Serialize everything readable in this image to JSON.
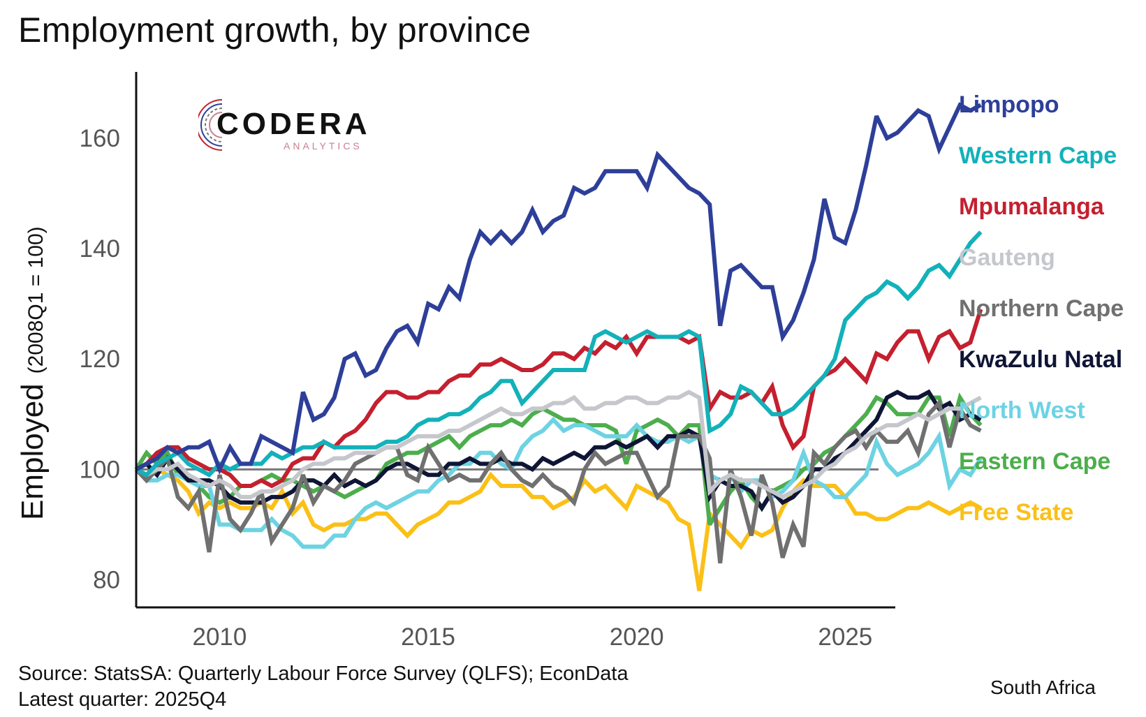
{
  "chart_data": {
    "type": "line",
    "title": "Employment growth, by province",
    "ylabel": "Employed",
    "ylabel_sub": "(2008Q1 = 100)",
    "xlabel": "",
    "xlim": [
      2008.0,
      2026.2
    ],
    "ylim": [
      75,
      172
    ],
    "y_ticks": [
      {
        "value": 80,
        "label": "80"
      },
      {
        "value": 100,
        "label": "100"
      },
      {
        "value": 120,
        "label": "120"
      },
      {
        "value": 140,
        "label": "140"
      },
      {
        "value": 160,
        "label": "160"
      }
    ],
    "x_ticks": [
      {
        "value": 2010,
        "label": "2010"
      },
      {
        "value": 2015,
        "label": "2015"
      },
      {
        "value": 2020,
        "label": "2020"
      },
      {
        "value": 2025,
        "label": "2025"
      }
    ],
    "reference_line": 100,
    "x_start": 2008.0,
    "x_step": 0.25,
    "series": [
      {
        "name": "Limpopo",
        "color": "#2e3f99",
        "values": [
          100,
          101,
          102,
          104,
          103,
          104,
          104,
          105,
          100,
          104,
          101,
          101,
          106,
          105,
          104,
          103,
          114,
          109,
          110,
          113,
          120,
          121,
          117,
          118,
          122,
          125,
          126,
          123,
          130,
          129,
          133,
          131,
          138,
          143,
          141,
          143,
          141,
          143,
          147,
          143,
          145,
          146,
          151,
          150,
          151,
          154,
          154,
          154,
          154,
          151,
          157,
          155,
          153,
          151,
          150,
          148,
          126,
          136,
          137,
          135,
          133,
          133,
          124,
          127,
          132,
          138,
          149,
          142,
          141,
          147,
          155,
          164,
          160,
          161,
          163,
          165,
          164,
          158,
          162,
          166,
          165,
          166
        ]
      },
      {
        "name": "Western Cape",
        "color": "#13b1b9",
        "values": [
          100,
          99,
          101,
          102,
          103,
          101,
          100,
          99,
          101,
          100,
          101,
          101,
          101,
          103,
          102,
          103,
          104,
          104,
          105,
          104,
          104,
          104,
          104,
          104,
          105,
          105,
          106,
          108,
          109,
          109,
          110,
          110,
          111,
          113,
          114,
          116,
          116,
          112,
          114,
          116,
          118,
          118,
          118,
          118,
          124,
          125,
          124,
          123,
          124,
          125,
          124,
          124,
          124,
          125,
          124,
          107,
          108,
          110,
          115,
          114,
          112,
          110,
          110,
          111,
          113,
          115,
          117,
          120,
          127,
          129,
          131,
          132,
          134,
          133,
          131,
          133,
          136,
          137,
          135,
          138,
          141,
          143
        ]
      },
      {
        "name": "Mpumalanga",
        "color": "#c4202f",
        "values": [
          100,
          101,
          103,
          104,
          104,
          102,
          101,
          100,
          100,
          99,
          97,
          97,
          98,
          97,
          98,
          101,
          102,
          102,
          105,
          104,
          106,
          107,
          109,
          112,
          114,
          114,
          113,
          113,
          114,
          114,
          116,
          117,
          117,
          119,
          119,
          120,
          119,
          118,
          118,
          119,
          121,
          121,
          120,
          122,
          121,
          123,
          122,
          124,
          121,
          124,
          124,
          124,
          124,
          123,
          124,
          111,
          114,
          113,
          113,
          114,
          112,
          115,
          108,
          104,
          106,
          115,
          117,
          118,
          120,
          118,
          116,
          121,
          120,
          123,
          125,
          125,
          120,
          124,
          125,
          122,
          123,
          129
        ]
      },
      {
        "name": "Gauteng",
        "color": "#c5c7cc",
        "values": [
          100,
          99,
          100,
          100,
          101,
          99,
          98,
          97,
          98,
          97,
          95,
          95,
          96,
          96,
          97,
          98,
          100,
          101,
          101,
          102,
          102,
          103,
          103,
          103,
          104,
          104,
          105,
          106,
          106,
          106,
          107,
          107,
          108,
          109,
          110,
          111,
          110,
          110,
          111,
          111,
          112,
          112,
          113,
          111,
          111,
          112,
          112,
          113,
          113,
          112,
          112,
          113,
          113,
          114,
          113,
          96,
          98,
          99,
          98,
          98,
          97,
          96,
          95,
          96,
          97,
          98,
          100,
          101,
          103,
          104,
          106,
          107,
          108,
          108,
          109,
          110,
          109,
          110,
          111,
          111,
          112,
          113
        ]
      },
      {
        "name": "Northern Cape",
        "color": "#707070",
        "values": [
          100,
          98,
          100,
          102,
          95,
          93,
          96,
          85,
          99,
          91,
          89,
          92,
          96,
          87,
          90,
          93,
          99,
          94,
          97,
          96,
          98,
          101,
          102,
          103,
          104,
          104,
          99,
          98,
          104,
          101,
          98,
          99,
          98,
          98,
          101,
          103,
          100,
          98,
          97,
          99,
          97,
          96,
          94,
          100,
          103,
          101,
          102,
          103,
          103,
          99,
          95,
          97,
          106,
          106,
          106,
          102,
          83,
          100,
          95,
          88,
          99,
          94,
          84,
          90,
          86,
          103,
          101,
          104,
          106,
          107,
          104,
          107,
          105,
          105,
          107,
          103,
          110,
          112,
          104,
          111,
          108,
          107
        ]
      },
      {
        "name": "KwaZulu Natal",
        "color": "#0f1535",
        "values": [
          100,
          101,
          99,
          102,
          100,
          98,
          98,
          98,
          97,
          95,
          94,
          94,
          94,
          95,
          95,
          96,
          98,
          98,
          97,
          99,
          97,
          98,
          97,
          98,
          100,
          101,
          101,
          100,
          99,
          99,
          101,
          101,
          102,
          101,
          101,
          102,
          101,
          101,
          100,
          102,
          101,
          102,
          103,
          102,
          104,
          104,
          105,
          104,
          105,
          106,
          104,
          106,
          106,
          107,
          106,
          95,
          98,
          97,
          97,
          96,
          93,
          96,
          94,
          95,
          97,
          100,
          100,
          102,
          103,
          105,
          107,
          109,
          113,
          114,
          113,
          113,
          114,
          111,
          112,
          109,
          110,
          109
        ]
      },
      {
        "name": "North West",
        "color": "#6dd3e3",
        "values": [
          100,
          98,
          98,
          99,
          99,
          98,
          97,
          97,
          90,
          90,
          89,
          89,
          89,
          91,
          89,
          88,
          86,
          86,
          86,
          88,
          88,
          91,
          93,
          94,
          93,
          94,
          95,
          96,
          96,
          98,
          99,
          101,
          101,
          103,
          103,
          101,
          100,
          104,
          106,
          107,
          109,
          107,
          108,
          108,
          107,
          106,
          106,
          106,
          108,
          106,
          105,
          105,
          106,
          105,
          106,
          99,
          98,
          99,
          96,
          98,
          98,
          95,
          96,
          98,
          103,
          98,
          97,
          95,
          95,
          97,
          99,
          105,
          101,
          99,
          100,
          101,
          103,
          106,
          97,
          100,
          99,
          102
        ]
      },
      {
        "name": "Eastern Cape",
        "color": "#4cae4c",
        "values": [
          100,
          103,
          101,
          103,
          99,
          98,
          97,
          95,
          94,
          95,
          97,
          97,
          98,
          99,
          98,
          98,
          97,
          96,
          97,
          96,
          95,
          96,
          97,
          98,
          101,
          102,
          103,
          103,
          104,
          105,
          106,
          104,
          106,
          107,
          108,
          108,
          109,
          108,
          110,
          111,
          110,
          109,
          109,
          108,
          108,
          108,
          107,
          101,
          107,
          108,
          109,
          108,
          106,
          108,
          108,
          90,
          93,
          96,
          98,
          95,
          93,
          96,
          97,
          98,
          100,
          101,
          103,
          104,
          106,
          108,
          110,
          113,
          112,
          110,
          110,
          110,
          113,
          113,
          106,
          113,
          110,
          108
        ]
      },
      {
        "name": "Free State",
        "color": "#fbc017",
        "values": [
          100,
          99,
          100,
          99,
          98,
          96,
          92,
          94,
          93,
          94,
          93,
          93,
          94,
          93,
          96,
          92,
          94,
          90,
          89,
          90,
          90,
          91,
          91,
          92,
          92,
          90,
          88,
          90,
          91,
          92,
          94,
          94,
          95,
          96,
          99,
          97,
          97,
          97,
          95,
          95,
          93,
          94,
          95,
          98,
          96,
          97,
          95,
          93,
          97,
          96,
          95,
          94,
          91,
          90,
          78,
          92,
          90,
          88,
          86,
          89,
          88,
          89,
          93,
          96,
          98,
          97,
          97,
          97,
          95,
          92,
          92,
          91,
          91,
          92,
          93,
          93,
          94,
          93,
          92,
          93,
          94,
          93
        ]
      }
    ],
    "legend_position": "right"
  },
  "logo": {
    "word": "CODERA",
    "sub": "ANALYTICS"
  },
  "footer": {
    "source": "Source: StatsSA: Quarterly Labour Force Survey (QLFS); EconData",
    "latest": "Latest quarter: 2025Q4",
    "region": "South Africa"
  }
}
